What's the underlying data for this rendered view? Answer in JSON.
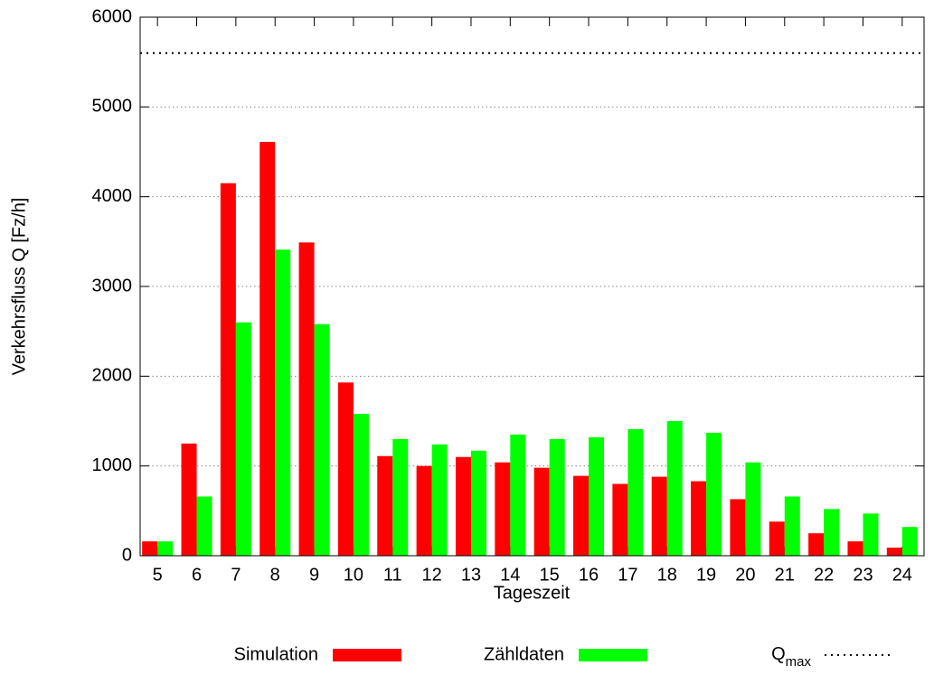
{
  "chart_data": {
    "type": "bar",
    "x_label": "Tageszeit",
    "y_label": "Verkehrsfluss Q [Fz/h]",
    "categories": [
      "5",
      "6",
      "7",
      "8",
      "9",
      "10",
      "11",
      "12",
      "13",
      "14",
      "15",
      "16",
      "17",
      "18",
      "19",
      "20",
      "21",
      "22",
      "23",
      "24"
    ],
    "series": [
      {
        "name": "Simulation",
        "color": "#ff0000",
        "values": [
          160,
          1250,
          4150,
          4610,
          3490,
          1930,
          1110,
          1000,
          1100,
          1040,
          980,
          890,
          800,
          880,
          830,
          630,
          380,
          250,
          160,
          90
        ]
      },
      {
        "name": "Zähldaten",
        "color": "#00ff00",
        "values": [
          160,
          660,
          2600,
          3410,
          2580,
          1580,
          1300,
          1240,
          1170,
          1350,
          1300,
          1320,
          1410,
          1500,
          1370,
          1040,
          660,
          520,
          470,
          320
        ]
      }
    ],
    "reference_lines": [
      {
        "label": "Q",
        "label_subscript": "max",
        "value": 5600,
        "color": "#000000"
      }
    ],
    "ylim": [
      0,
      6000
    ],
    "yticks": [
      0,
      1000,
      2000,
      3000,
      4000,
      5000,
      6000
    ],
    "grid": true,
    "legend": "bottom"
  }
}
